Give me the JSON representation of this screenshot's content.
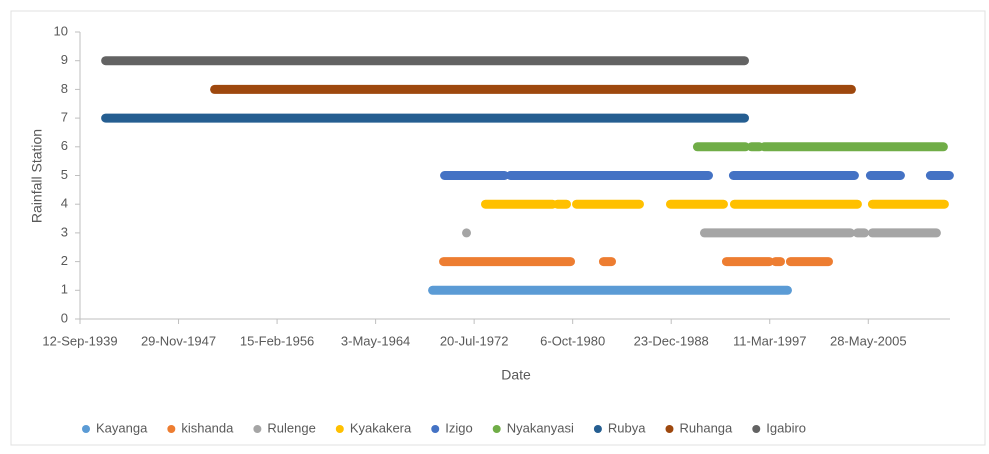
{
  "chart_data": {
    "type": "line",
    "xlabel": "Date",
    "ylabel": "Rainfall Station",
    "xlim": [
      "1939-09-12",
      "2012-03-20"
    ],
    "xticks": [
      {
        "value": "1939-09-12",
        "label": "12-Sep-1939"
      },
      {
        "value": "1947-11-29",
        "label": "29-Nov-1947"
      },
      {
        "value": "1956-02-15",
        "label": "15-Feb-1956"
      },
      {
        "value": "1964-05-03",
        "label": "3-May-1964"
      },
      {
        "value": "1972-07-20",
        "label": "20-Jul-1972"
      },
      {
        "value": "1980-10-06",
        "label": "6-Oct-1980"
      },
      {
        "value": "1988-12-23",
        "label": "23-Dec-1988"
      },
      {
        "value": "1997-03-11",
        "label": "11-Mar-1997"
      },
      {
        "value": "2005-05-28",
        "label": "28-May-2005"
      }
    ],
    "ylim": [
      0,
      10
    ],
    "yticks": [
      0,
      1,
      2,
      3,
      4,
      5,
      6,
      7,
      8,
      9,
      10
    ],
    "grid": false,
    "legend": "bottom",
    "series": [
      {
        "name": "Kayanga",
        "color": "#5b9bd5",
        "x": [
          "1969-02-01",
          "1998-09-01"
        ],
        "values": [
          1,
          1
        ]
      },
      {
        "name": "kishanda",
        "color": "#ed7d31",
        "x": [
          "1970-01-01",
          "1980-08-01",
          null,
          "1983-05-01",
          "1984-01-01",
          null,
          "1993-08-01",
          "1997-03-01",
          null,
          "1997-09-01",
          "1998-02-01",
          null,
          "1998-12-01",
          "2002-02-01"
        ],
        "values": [
          2,
          2,
          null,
          2,
          2,
          null,
          2,
          2,
          null,
          2,
          2,
          null,
          2,
          2
        ]
      },
      {
        "name": "Rulenge",
        "color": "#a5a5a5",
        "x": [
          "1971-12-01",
          null,
          "1991-10-01",
          "2003-12-01",
          null,
          "2004-07-01",
          "2005-02-01",
          null,
          "2005-10-01",
          "2011-02-01"
        ],
        "values": [
          3,
          null,
          3,
          3,
          null,
          3,
          3,
          null,
          3,
          3
        ]
      },
      {
        "name": "Kyakakera",
        "color": "#ffc000",
        "x": [
          "1973-07-01",
          "1979-02-01",
          null,
          "1979-07-01",
          "1980-04-01",
          null,
          "1981-02-01",
          "1986-05-01",
          null,
          "1988-12-01",
          "1993-05-01",
          null,
          "1994-04-01",
          "2004-07-01",
          null,
          "2005-10-01",
          "2011-10-01"
        ],
        "values": [
          4,
          4,
          null,
          4,
          4,
          null,
          4,
          4,
          null,
          4,
          4,
          null,
          4,
          4,
          null,
          4,
          4
        ]
      },
      {
        "name": "Izigo",
        "color": "#4472c4",
        "x": [
          "1970-02-01",
          "1975-02-01",
          null,
          "1975-08-01",
          "1992-02-01",
          null,
          "1994-03-01",
          "2004-04-01",
          null,
          "2005-08-01",
          "2008-02-01",
          null,
          "2010-08-01",
          "2012-03-01"
        ],
        "values": [
          5,
          5,
          null,
          5,
          5,
          null,
          5,
          5,
          null,
          5,
          5,
          null,
          5,
          5
        ]
      },
      {
        "name": "Nyakanyasi",
        "color": "#70ad47",
        "x": [
          "1991-03-01",
          "1995-03-01",
          null,
          "1995-09-01",
          "1996-05-01",
          null,
          "1996-10-01",
          "2011-09-01"
        ],
        "values": [
          6,
          6,
          null,
          6,
          6,
          null,
          6,
          6
        ]
      },
      {
        "name": "Rubya",
        "color": "#255e91",
        "x": [
          "1941-11-01",
          "1995-02-01"
        ],
        "values": [
          7,
          7
        ]
      },
      {
        "name": "Ruhanga",
        "color": "#9e480e",
        "x": [
          "1950-12-01",
          "2004-01-01"
        ],
        "values": [
          8,
          8
        ]
      },
      {
        "name": "Igabiro",
        "color": "#636363",
        "x": [
          "1941-11-01",
          "1995-02-01"
        ],
        "values": [
          9,
          9
        ]
      }
    ]
  }
}
